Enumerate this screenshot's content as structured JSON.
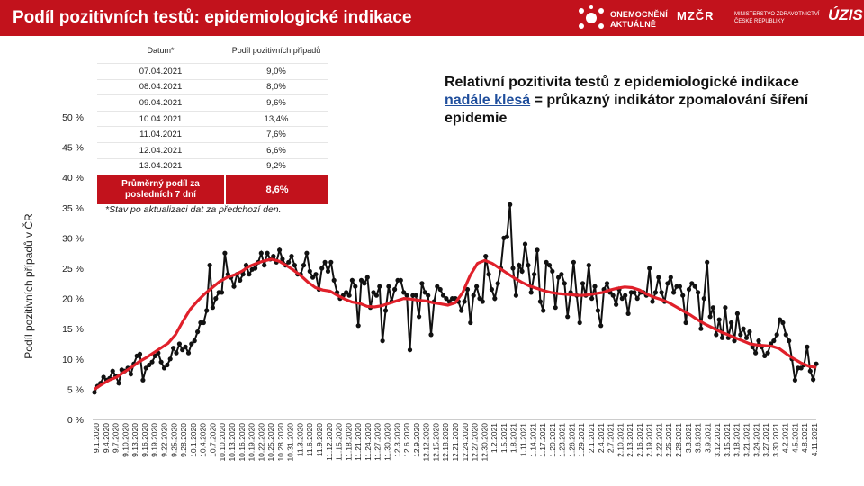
{
  "header": {
    "title": "Podíl pozitivních testů: epidemiologické indikace",
    "logo_onemocneni": "ONEMOCNĚNÍ",
    "logo_aktualne": "AKTUÁLNĚ",
    "logo_mz": "MZČR",
    "logo_mz_text": "MINISTERSTVO ZDRAVOTNICTVÍ ČESKÉ REPUBLIKY",
    "logo_uzis": "ÚZIS"
  },
  "table": {
    "col_date": "Datum*",
    "col_share": "Podíl pozitivních případů",
    "rows": [
      {
        "date": "07.04.2021",
        "value": "9,0%"
      },
      {
        "date": "08.04.2021",
        "value": "8,0%"
      },
      {
        "date": "09.04.2021",
        "value": "9,6%"
      },
      {
        "date": "10.04.2021",
        "value": "13,4%"
      },
      {
        "date": "11.04.2021",
        "value": "7,6%"
      },
      {
        "date": "12.04.2021",
        "value": "6,6%"
      },
      {
        "date": "13.04.2021",
        "value": "9,2%"
      }
    ],
    "avg_label": "Průměrný podíl za posledních 7 dní",
    "avg_value": "8,6%"
  },
  "footnote": "*Stav po aktualizaci dat za předchozí den.",
  "annotation": {
    "prefix": "Relativní pozitivita testů z epidemiologické indikace ",
    "highlight": "nadále klesá",
    "suffix": " = průkazný indikátor zpomalování šíření epidemie"
  },
  "colors": {
    "header": "#c2121c",
    "series": "#111111",
    "trend": "#e0202a",
    "highlight": "#1f4e9c"
  },
  "chart_data": {
    "type": "line",
    "title": "",
    "xlabel": "",
    "ylabel": "Podíl pozitivních případů v ČR",
    "ylim": [
      0,
      50
    ],
    "yticks": [
      0,
      5,
      10,
      15,
      20,
      25,
      30,
      35,
      40,
      45,
      50
    ],
    "ytick_labels": [
      "0 %",
      "5 %",
      "10 %",
      "15 %",
      "20 %",
      "25 %",
      "30 %",
      "35 %",
      "40 %",
      "45 %",
      "50 %"
    ],
    "x_tick_labels": [
      "9.1.2020",
      "9.4.2020",
      "9.7.2020",
      "9.10.2020",
      "9.13.2020",
      "9.16.2020",
      "9.19.2020",
      "9.22.2020",
      "9.25.2020",
      "9.28.2020",
      "10.1.2020",
      "10.4.2020",
      "10.7.2020",
      "10.10.2020",
      "10.13.2020",
      "10.16.2020",
      "10.19.2020",
      "10.22.2020",
      "10.25.2020",
      "10.28.2020",
      "10.31.2020",
      "11.3.2020",
      "11.6.2020",
      "11.9.2020",
      "11.12.2020",
      "11.15.2020",
      "11.18.2020",
      "11.21.2020",
      "11.24.2020",
      "11.27.2020",
      "11.30.2020",
      "12.3.2020",
      "12.6.2020",
      "12.9.2020",
      "12.12.2020",
      "12.15.2020",
      "12.18.2020",
      "12.21.2020",
      "12.24.2020",
      "12.27.2020",
      "12.30.2020",
      "1.2.2021",
      "1.5.2021",
      "1.8.2021",
      "1.11.2021",
      "1.14.2021",
      "1.17.2021",
      "1.20.2021",
      "1.23.2021",
      "1.26.2021",
      "1.29.2021",
      "2.1.2021",
      "2.4.2021",
      "2.7.2021",
      "2.10.2021",
      "2.13.2021",
      "2.16.2021",
      "2.19.2021",
      "2.22.2021",
      "2.25.2021",
      "2.28.2021",
      "3.3.2021",
      "3.6.2021",
      "3.9.2021",
      "3.12.2021",
      "3.15.2021",
      "3.18.2021",
      "3.21.2021",
      "3.24.2021",
      "3.27.2021",
      "3.30.2021",
      "4.2.2021",
      "4.5.2021",
      "4.8.2021",
      "4.11.2021"
    ],
    "series": [
      {
        "name": "Denní podíl",
        "values": [
          4.5,
          5.5,
          6,
          7,
          6.5,
          6.8,
          8,
          7.2,
          6,
          8.2,
          8,
          8.5,
          7.5,
          9.2,
          10.5,
          10.8,
          6.5,
          8.5,
          9,
          9.5,
          10.5,
          11,
          9.5,
          8.5,
          9,
          10,
          11.8,
          11,
          12.5,
          11.5,
          12,
          11,
          12.5,
          13,
          14.5,
          16,
          16,
          18,
          25.5,
          18.5,
          20,
          21,
          21,
          27.5,
          24,
          23.5,
          22,
          24,
          23,
          24,
          25.5,
          24,
          24.8,
          25,
          26,
          27.5,
          25.5,
          27.5,
          26.5,
          27,
          26,
          28,
          26.5,
          25.5,
          26,
          27,
          25.5,
          24,
          24,
          25.5,
          27.5,
          24.5,
          23.5,
          24,
          21.5,
          25,
          26,
          24.5,
          26,
          23,
          21,
          20,
          20.5,
          21,
          20.5,
          23,
          22,
          15.5,
          23,
          22.5,
          23.5,
          18.5,
          21,
          20.5,
          22,
          13,
          18,
          22,
          19.5,
          21.5,
          23,
          23,
          21,
          20.5,
          11.5,
          20.5,
          20.5,
          17,
          22.5,
          21,
          20.5,
          14,
          19.5,
          22,
          21.5,
          20.5,
          20,
          19.5,
          20,
          20,
          19.5,
          18,
          19.5,
          21.5,
          16,
          20.5,
          22,
          20,
          19.5,
          27,
          24,
          21.5,
          20,
          22.5,
          25,
          30,
          30.2,
          35.5,
          25,
          20.5,
          25.5,
          24.5,
          29,
          25.5,
          21,
          24,
          28,
          19.5,
          18,
          26,
          25.5,
          24.5,
          18.5,
          23.5,
          24,
          22.5,
          17,
          21,
          26,
          20.5,
          16,
          22.5,
          20.5,
          25.5,
          20,
          22,
          18,
          15.5,
          21.5,
          22.5,
          21,
          20.5,
          19,
          21.5,
          20,
          20.5,
          17.5,
          21,
          21,
          20,
          21,
          21,
          20.5,
          25,
          19.5,
          21,
          23.5,
          21,
          19.5,
          22.5,
          23.5,
          21,
          22,
          22,
          20.5,
          16,
          21.5,
          22.5,
          22,
          21,
          15,
          20,
          26,
          17,
          18.5,
          14,
          16.5,
          13.5,
          18.5,
          13.5,
          16,
          13,
          17.5,
          14,
          15,
          13.5,
          14.5,
          12,
          11,
          13,
          12,
          10.5,
          11,
          12.5,
          13,
          14,
          16.5,
          16,
          14,
          13,
          10,
          6.5,
          8.5,
          8.5,
          9,
          12,
          8,
          6.6,
          9.2
        ]
      },
      {
        "name": "Trend",
        "values": [
          5,
          5.8,
          6.5,
          7,
          7.8,
          8.6,
          9.5,
          10.2,
          11,
          11.8,
          12.6,
          14,
          16.2,
          18.2,
          19.6,
          20.8,
          21.8,
          22.8,
          23.5,
          23.9,
          24.5,
          25.3,
          25.8,
          26.2,
          26.5,
          26.2,
          25.5,
          24.7,
          23.8,
          22.7,
          21.8,
          21.4,
          21.2,
          20.5,
          19.9,
          19.4,
          19.2,
          18.7,
          18.6,
          18.8,
          19.2,
          19.6,
          20,
          19.9,
          19.7,
          19.6,
          19.3,
          19.1,
          18.9,
          19.3,
          21,
          23.8,
          25.8,
          26.3,
          25.8,
          25,
          24.2,
          23.4,
          22.7,
          22.1,
          21.7,
          21.3,
          21,
          20.8,
          20.7,
          20.6,
          20.5,
          20.6,
          20.8,
          21,
          21.4,
          21.7,
          21.9,
          21.8,
          21.4,
          20.7,
          20.2,
          19.8,
          19.3,
          18.6,
          17.9,
          17.2,
          16.4,
          15.7,
          15.1,
          14.5,
          14,
          13.5,
          13,
          12.5,
          12.3,
          12.2,
          12.1,
          11.7,
          10.8,
          10,
          9.3,
          8.8,
          8.6
        ]
      }
    ],
    "legend": "none",
    "grid": false
  }
}
